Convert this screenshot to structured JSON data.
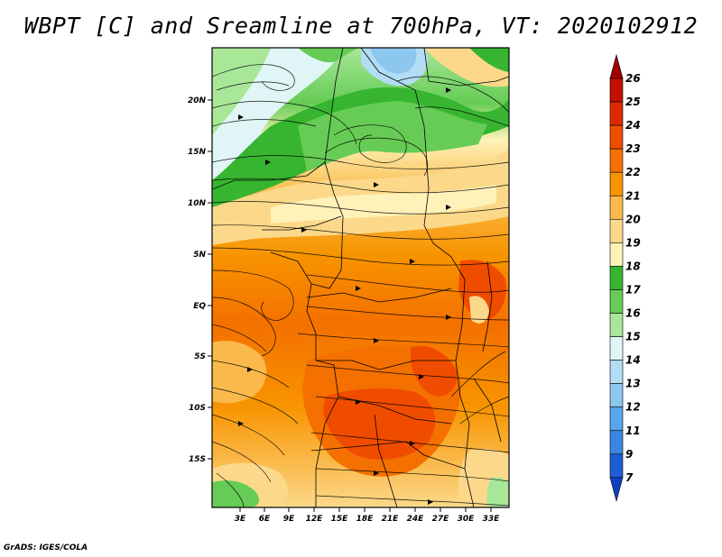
{
  "title": "WBPT [C] and Sreamline at 700hPa, VT: 2020102912",
  "credit": "GrADS: IGES/COLA",
  "map": {
    "lat_labels": [
      "20N",
      "15N",
      "10N",
      "5N",
      "EQ",
      "5S",
      "10S",
      "15S"
    ],
    "lon_labels": [
      "3E",
      "6E",
      "9E",
      "12E",
      "15E",
      "18E",
      "21E",
      "24E",
      "27E",
      "30E",
      "33E"
    ]
  },
  "colorbar": {
    "labels": [
      "26",
      "25",
      "24",
      "23",
      "22",
      "21",
      "20",
      "19",
      "18",
      "17",
      "16",
      "15",
      "14",
      "13",
      "12",
      "11",
      "9",
      "7"
    ],
    "colors": [
      "#a00000",
      "#c41000",
      "#e02800",
      "#f04c00",
      "#f47000",
      "#f89400",
      "#fab94a",
      "#fcd98a",
      "#fef2b8",
      "#37b530",
      "#66cc55",
      "#a8e698",
      "#e0f6f6",
      "#b2ddf4",
      "#8cc7f0",
      "#5aa6ea",
      "#3a86e0",
      "#1e5ed4",
      "#1040c0"
    ]
  }
}
